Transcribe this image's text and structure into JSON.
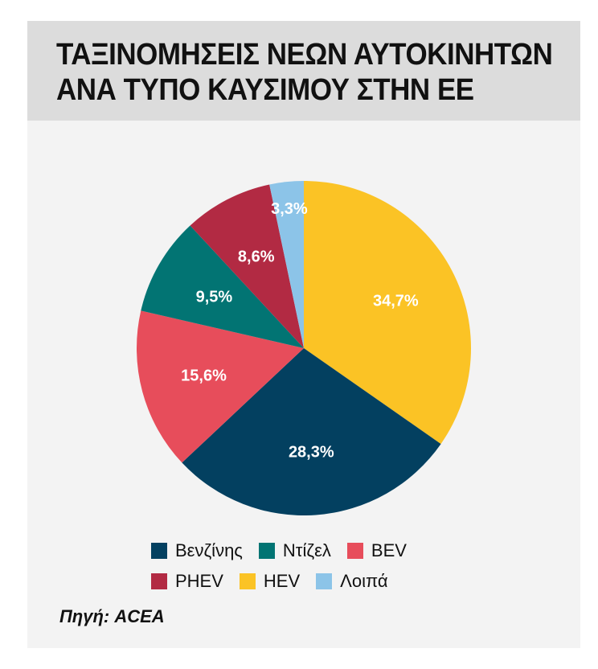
{
  "title_lines": [
    "ΤΑΞΙΝΟΜΗΣΕΙΣ ΝΕΩΝ ΑΥΤΟΚΙΝΗΤΩΝ",
    "ΑΝΑ ΤΥΠΟ ΚΑΥΣΙΜΟΥ ΣΤΗΝ ΕΕ"
  ],
  "source": "Πηγή: ACEA",
  "chart_data": {
    "type": "pie",
    "title": "ΤΑΞΙΝΟΜΗΣΕΙΣ ΝΕΩΝ ΑΥΤΟΚΙΝΗΤΩΝ ΑΝΑ ΤΥΠΟ ΚΑΥΣΙΜΟΥ ΣΤΗΝ ΕΕ",
    "unit": "%",
    "slices": [
      {
        "name": "HEV",
        "value": 34.7,
        "label": "34,7%",
        "color": "#fbc325"
      },
      {
        "name": "Βενζίνης",
        "value": 28.3,
        "label": "28,3%",
        "color": "#034060"
      },
      {
        "name": "BEV",
        "value": 15.6,
        "label": "15,6%",
        "color": "#e74d5b"
      },
      {
        "name": "Ντίζελ",
        "value": 9.5,
        "label": "9,5%",
        "color": "#027473"
      },
      {
        "name": "PHEV",
        "value": 8.6,
        "label": "8,6%",
        "color": "#b22a43"
      },
      {
        "name": "Λοιπά",
        "value": 3.3,
        "label": "3,3%",
        "color": "#8cc4e8"
      }
    ],
    "start": "12 o'clock",
    "direction": "clockwise"
  },
  "legend": [
    [
      {
        "label": "Βενζίνης",
        "color": "#034060"
      },
      {
        "label": "Ντίζελ",
        "color": "#027473"
      },
      {
        "label": "BEV",
        "color": "#e74d5b"
      }
    ],
    [
      {
        "label": "PHEV",
        "color": "#b22a43"
      },
      {
        "label": "HEV",
        "color": "#fbc325"
      },
      {
        "label": "Λοιπά",
        "color": "#8cc4e8"
      }
    ]
  ]
}
